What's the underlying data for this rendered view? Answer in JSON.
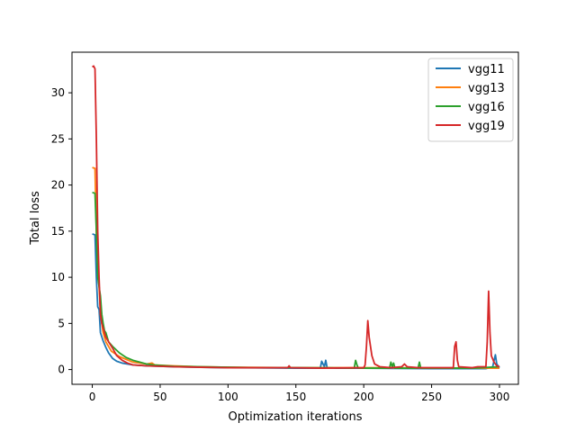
{
  "chart_data": {
    "type": "line",
    "title": "",
    "xlabel": "Optimization iterations",
    "ylabel": "Total loss",
    "xlim": [
      -14.95,
      313.95
    ],
    "ylim": [
      -1.6,
      34.4
    ],
    "xticks": [
      0,
      50,
      100,
      150,
      200,
      250,
      300
    ],
    "yticks": [
      0,
      5,
      10,
      15,
      20,
      25,
      30
    ],
    "grid": false,
    "legend_position": "top-right",
    "series": [
      {
        "name": "vgg11",
        "color": "#1f77b4",
        "points": [
          [
            0,
            14.7
          ],
          [
            2,
            14.6
          ],
          [
            3,
            10
          ],
          [
            4,
            6.8
          ],
          [
            5,
            6.5
          ],
          [
            6,
            4
          ],
          [
            8,
            3.1
          ],
          [
            10,
            2.4
          ],
          [
            12,
            1.8
          ],
          [
            15,
            1.2
          ],
          [
            18,
            0.9
          ],
          [
            22,
            0.7
          ],
          [
            30,
            0.5
          ],
          [
            40,
            0.4
          ],
          [
            60,
            0.3
          ],
          [
            80,
            0.25
          ],
          [
            100,
            0.2
          ],
          [
            120,
            0.18
          ],
          [
            150,
            0.15
          ],
          [
            168,
            0.15
          ],
          [
            169,
            0.9
          ],
          [
            170,
            0.6
          ],
          [
            171,
            0.3
          ],
          [
            172,
            1.0
          ],
          [
            173,
            0.2
          ],
          [
            180,
            0.15
          ],
          [
            200,
            0.15
          ],
          [
            220,
            0.12
          ],
          [
            250,
            0.1
          ],
          [
            280,
            0.1
          ],
          [
            290,
            0.1
          ],
          [
            295,
            0.3
          ],
          [
            297,
            1.6
          ],
          [
            298,
            0.6
          ],
          [
            300,
            0.2
          ]
        ]
      },
      {
        "name": "vgg13",
        "color": "#ff7f0e",
        "points": [
          [
            0,
            21.9
          ],
          [
            2,
            21.8
          ],
          [
            3,
            15
          ],
          [
            4,
            11
          ],
          [
            5,
            9
          ],
          [
            6,
            6
          ],
          [
            8,
            4
          ],
          [
            10,
            3
          ],
          [
            14,
            2
          ],
          [
            20,
            1.4
          ],
          [
            30,
            0.8
          ],
          [
            40,
            0.6
          ],
          [
            44,
            0.7
          ],
          [
            46,
            0.5
          ],
          [
            60,
            0.4
          ],
          [
            80,
            0.3
          ],
          [
            100,
            0.25
          ],
          [
            150,
            0.2
          ],
          [
            200,
            0.2
          ],
          [
            250,
            0.18
          ],
          [
            300,
            0.15
          ]
        ]
      },
      {
        "name": "vgg16",
        "color": "#2ca02c",
        "points": [
          [
            0,
            19.2
          ],
          [
            2,
            19.1
          ],
          [
            3,
            15
          ],
          [
            4,
            10
          ],
          [
            5,
            9
          ],
          [
            6,
            8
          ],
          [
            7,
            6
          ],
          [
            8,
            5
          ],
          [
            9,
            4.2
          ],
          [
            10,
            4
          ],
          [
            12,
            3
          ],
          [
            15,
            2.5
          ],
          [
            20,
            1.8
          ],
          [
            25,
            1.3
          ],
          [
            30,
            1.0
          ],
          [
            35,
            0.8
          ],
          [
            40,
            0.6
          ],
          [
            45,
            0.5
          ],
          [
            60,
            0.35
          ],
          [
            80,
            0.3
          ],
          [
            100,
            0.25
          ],
          [
            120,
            0.2
          ],
          [
            145,
            0.2
          ],
          [
            150,
            0.2
          ],
          [
            180,
            0.18
          ],
          [
            193,
            0.15
          ],
          [
            194,
            1.0
          ],
          [
            195,
            0.5
          ],
          [
            196,
            0.15
          ],
          [
            219,
            0.15
          ],
          [
            220,
            0.8
          ],
          [
            221,
            0.3
          ],
          [
            222,
            0.7
          ],
          [
            223,
            0.15
          ],
          [
            240,
            0.15
          ],
          [
            241,
            0.8
          ],
          [
            242,
            0.15
          ],
          [
            260,
            0.15
          ],
          [
            280,
            0.15
          ],
          [
            300,
            0.3
          ]
        ]
      },
      {
        "name": "vgg19",
        "color": "#d62728",
        "points": [
          [
            0,
            32.8
          ],
          [
            1,
            32.9
          ],
          [
            2,
            32.6
          ],
          [
            3,
            25
          ],
          [
            4,
            15
          ],
          [
            5,
            10
          ],
          [
            6,
            6
          ],
          [
            7,
            5
          ],
          [
            8,
            4.5
          ],
          [
            9,
            4
          ],
          [
            10,
            3.5
          ],
          [
            12,
            3
          ],
          [
            15,
            2.3
          ],
          [
            18,
            1.5
          ],
          [
            22,
            1.0
          ],
          [
            26,
            0.7
          ],
          [
            30,
            0.5
          ],
          [
            40,
            0.4
          ],
          [
            60,
            0.3
          ],
          [
            80,
            0.25
          ],
          [
            100,
            0.2
          ],
          [
            120,
            0.2
          ],
          [
            144,
            0.2
          ],
          [
            145,
            0.4
          ],
          [
            146,
            0.2
          ],
          [
            170,
            0.15
          ],
          [
            200,
            0.2
          ],
          [
            201,
            0.5
          ],
          [
            202,
            2.5
          ],
          [
            203,
            5.3
          ],
          [
            204,
            3.5
          ],
          [
            205,
            2.5
          ],
          [
            206,
            1.5
          ],
          [
            208,
            0.6
          ],
          [
            212,
            0.3
          ],
          [
            220,
            0.2
          ],
          [
            228,
            0.3
          ],
          [
            230,
            0.6
          ],
          [
            232,
            0.3
          ],
          [
            240,
            0.2
          ],
          [
            260,
            0.2
          ],
          [
            266,
            0.2
          ],
          [
            267,
            2.5
          ],
          [
            268,
            3.0
          ],
          [
            269,
            1.0
          ],
          [
            270,
            0.3
          ],
          [
            280,
            0.2
          ],
          [
            284,
            0.3
          ],
          [
            290,
            0.3
          ],
          [
            291,
            3
          ],
          [
            292,
            8.5
          ],
          [
            293,
            4
          ],
          [
            294,
            1.5
          ],
          [
            296,
            0.8
          ],
          [
            298,
            0.4
          ],
          [
            300,
            0.3
          ]
        ]
      }
    ]
  }
}
